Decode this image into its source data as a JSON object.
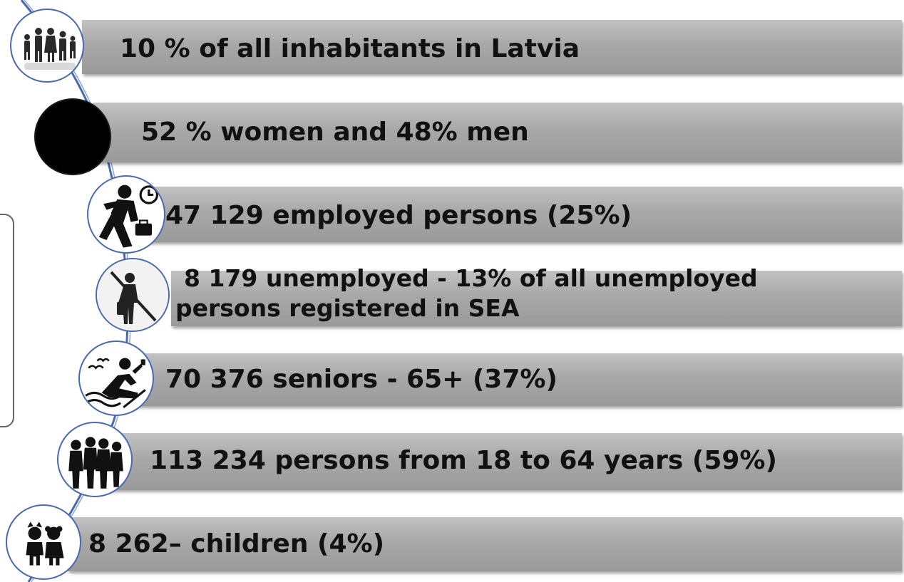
{
  "items": [
    {
      "text": "10 % of all inhabitants in Latvia",
      "icon": "family-icon"
    },
    {
      "text": "52 % women and 48% men",
      "icon": "black-circle-icon"
    },
    {
      "text": "47 129 employed persons (25%)",
      "icon": "businessman-walking-icon"
    },
    {
      "text_line1": "8 179 unemployed  - 13% of all unemployed",
      "text_line2": "persons registered in SEA",
      "icon": "no-work-icon"
    },
    {
      "text": "70 376  seniors  - 65+ (37%)",
      "icon": "senior-relaxing-icon"
    },
    {
      "text": "113 234 persons  from 18 to 64 years (59%)",
      "icon": "adults-group-icon"
    },
    {
      "text": "8 262– children (4%)",
      "icon": "children-icon"
    }
  ],
  "colors": {
    "bar": "#a8a8a8",
    "timeline": "#4a6ab0",
    "text": "#111111"
  }
}
